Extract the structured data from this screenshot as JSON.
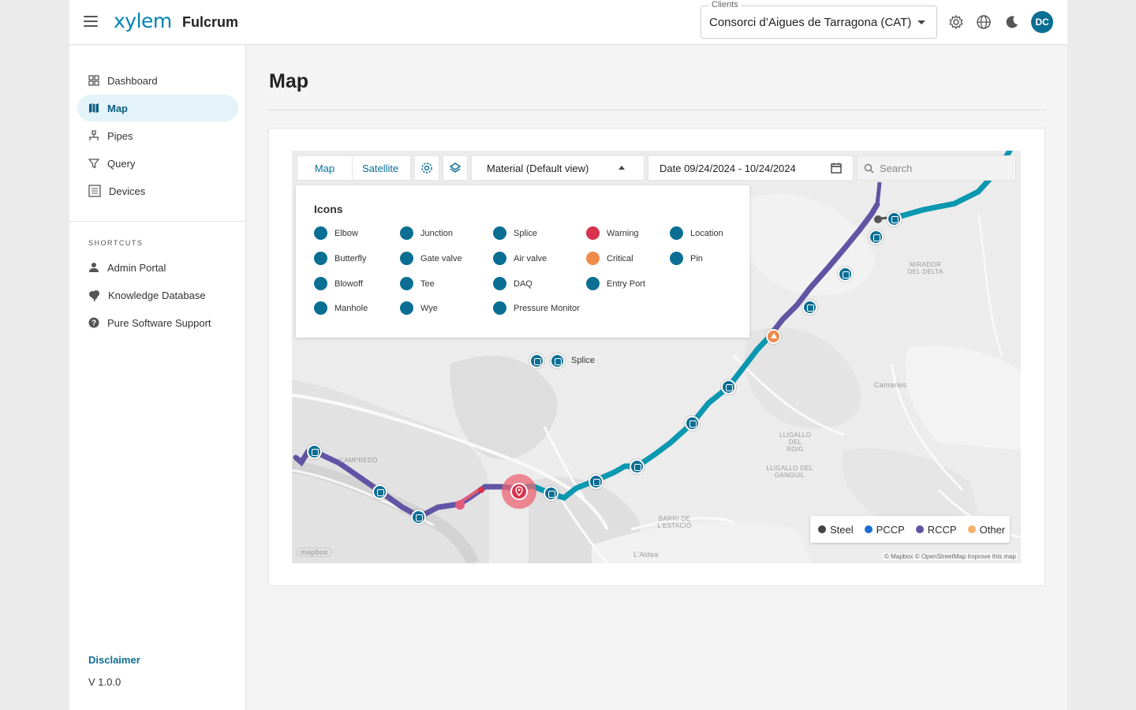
{
  "header": {
    "logo": "xylem",
    "product": "Fulcrum",
    "clients_label": "Clients",
    "client_value": "Consorci d’Aigues de Tarragona (CAT)",
    "avatar_initials": "DC",
    "icons": [
      "settings-icon",
      "globe-icon",
      "dark-mode-icon"
    ]
  },
  "sidebar": {
    "items": [
      {
        "label": "Dashboard",
        "icon": "dashboard-icon"
      },
      {
        "label": "Map",
        "icon": "map-icon"
      },
      {
        "label": "Pipes",
        "icon": "pipes-icon"
      },
      {
        "label": "Query",
        "icon": "filter-icon"
      },
      {
        "label": "Devices",
        "icon": "list-icon"
      }
    ],
    "active": "Map",
    "shortcuts_label": "SHORTCUTS",
    "shortcuts": [
      {
        "label": "Admin Portal",
        "icon": "person-icon"
      },
      {
        "label": "Knowledge Database",
        "icon": "tree-icon"
      },
      {
        "label": "Pure Software Support",
        "icon": "help-icon"
      }
    ],
    "disclaimer": "Disclaimer",
    "version": "V 1.0.0"
  },
  "main": {
    "title": "Map",
    "toolbar": {
      "map_tab": "Map",
      "satellite_tab": "Satellite",
      "material_select": "Material (Default view)",
      "date_range": "Date 09/24/2024 - 10/24/2024",
      "search_placeholder": "Search"
    },
    "icons_panel": {
      "title": "Icons",
      "items": [
        {
          "label": "Elbow",
          "color": "#0b6e93"
        },
        {
          "label": "Junction",
          "color": "#0b6e93"
        },
        {
          "label": "Splice",
          "color": "#0b6e93"
        },
        {
          "label": "Warning",
          "color": "#d7334e"
        },
        {
          "label": "Location",
          "color": "#0b6e93"
        },
        {
          "label": "Butterfly",
          "color": "#0b6e93"
        },
        {
          "label": "Gate valve",
          "color": "#0b6e93"
        },
        {
          "label": "Air valve",
          "color": "#0b6e93"
        },
        {
          "label": "Critical",
          "color": "#f08a4b"
        },
        {
          "label": "Pin",
          "color": "#0b6e93"
        },
        {
          "label": "Blowoff",
          "color": "#0b6e93"
        },
        {
          "label": "Tee",
          "color": "#0b6e93"
        },
        {
          "label": "DAQ",
          "color": "#0b6e93"
        },
        {
          "label": "Entry Port",
          "color": "#0b6e93"
        },
        {
          "label": "Manhole",
          "color": "#0b6e93"
        },
        {
          "label": "Wye",
          "color": "#0b6e93"
        },
        {
          "label": "Pressure Monitor",
          "color": "#0b6e93"
        }
      ]
    },
    "map_tooltip": "Splice",
    "place_labels": [
      "Camarles",
      "L'Aldea",
      "MIRADOR DEL DELTA",
      "LLIGALLO DEL ROIG",
      "LLIGALLO DEL GANGUIL",
      "BARRI DE L'ESTACIÓ",
      "CAMPREDÓ"
    ],
    "material_legend": [
      {
        "label": "Steel",
        "color": "#444444"
      },
      {
        "label": "PCCP",
        "color": "#1a6fd1"
      },
      {
        "label": "RCCP",
        "color": "#6254a4"
      },
      {
        "label": "Other",
        "color": "#f5b06a"
      }
    ],
    "attribution": "© Mapbox © OpenStreetMap Improve this map",
    "mapbox_logo": "mapbox"
  },
  "colors": {
    "brand": "#0083b3",
    "pin": "#0b6e93",
    "pipe_teal": "#0a97b0",
    "pipe_purple": "#6254a4",
    "warning": "#d7334e",
    "critical": "#f08a4b"
  }
}
